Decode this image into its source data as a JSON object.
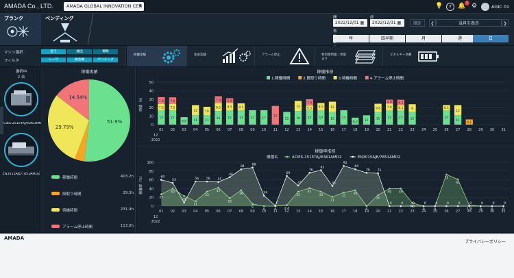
{
  "header": {
    "brand": "AMADA Co., LTD.",
    "org_select": "AMADA GLOBAL INNOVATION CEN",
    "notification_count": "1",
    "user": "AGIC 01"
  },
  "modes": [
    {
      "label": "ブランク",
      "icon": "blank-laser-icon"
    },
    {
      "label": "ベンディング",
      "icon": "bending-press-icon"
    }
  ],
  "period": {
    "start_label": "開始",
    "end_label": "終了",
    "start_value": "2022/12/01",
    "end_value": "2022/12/31",
    "confirm_label": "確定",
    "current_month_label": "当月を表示",
    "unit_label": "表示単位",
    "units": [
      "年",
      "四半期",
      "月",
      "週",
      "日"
    ],
    "active_unit": "日"
  },
  "filters": {
    "machine_label": "マシン選択",
    "machine_options": [
      "全て",
      "抽出",
      "複数"
    ],
    "filter_label": "フィルタ",
    "filter_options": [
      "レーザ",
      "複合機",
      "パンチング"
    ]
  },
  "metrics": [
    {
      "label": "稼働実績",
      "icon": "gear-icon"
    },
    {
      "label": "生産実績",
      "icon": "growth-chart-icon"
    },
    {
      "label": "アラーム停止",
      "icon": "warning-icon"
    },
    {
      "label": "材料使用量／歩留まり",
      "icon": "sheet-material-icon"
    },
    {
      "label": "エネルギー消費",
      "icon": "battery-icon"
    }
  ],
  "machines": {
    "title": "選択中",
    "count": "2 台",
    "items": [
      "ACIES-2515TAJ/6361AMD2",
      "EN3015AJE/7851AMD2"
    ]
  },
  "pie": {
    "title": "稼働実績",
    "slices": [
      {
        "name": "稼働時間",
        "pct": 51.9,
        "label": "51.9%",
        "hours": "403.2h",
        "color": "#6be08f"
      },
      {
        "name": "段取り時間",
        "pct": 3.77,
        "label": "",
        "hours": "29.3h",
        "color": "#f5a623"
      },
      {
        "name": "待機時間",
        "pct": 29.79,
        "label": "29.79%",
        "hours": "231.4h",
        "color": "#f0e65a"
      },
      {
        "name": "アラーム停止時間",
        "pct": 14.54,
        "label": "14.54%",
        "hours": "113.0h",
        "color": "#f07478"
      }
    ]
  },
  "chart_data": [
    {
      "type": "bar",
      "title": "稼働推移",
      "ylabel": "時間（h）",
      "xlabel": "12 2022",
      "ylim": [
        0,
        50
      ],
      "categories": [
        "01",
        "02",
        "03",
        "04",
        "05",
        "06",
        "07",
        "08",
        "09",
        "10",
        "11",
        "12",
        "13",
        "14",
        "15",
        "16",
        "17",
        "18",
        "19",
        "20",
        "21",
        "22",
        "23",
        "24",
        "25",
        "26",
        "27",
        "28",
        "29",
        "30",
        "31"
      ],
      "series": [
        {
          "name": "1.稼働時間",
          "color": "#6be08f",
          "values": [
            17,
            17,
            8.8,
            11,
            11,
            16,
            17,
            17,
            17,
            17,
            0,
            15,
            16,
            17,
            17,
            15,
            17,
            8.2,
            11,
            15,
            17,
            17,
            15,
            0,
            0,
            17,
            11,
            0,
            0,
            0,
            0
          ]
        },
        {
          "name": "2.段取り時間",
          "color": "#f5a623",
          "values": [
            0,
            0,
            0,
            0,
            0,
            0,
            0,
            0,
            0,
            0,
            0,
            0,
            0,
            0,
            0,
            0,
            0,
            0,
            0,
            0,
            0,
            0,
            0,
            0,
            0,
            0,
            0,
            6.1,
            0,
            0,
            0
          ]
        },
        {
          "name": "3.待機時間",
          "color": "#f0e65a",
          "values": [
            7.5,
            7.5,
            0,
            12,
            10,
            9.5,
            8.5,
            8.1,
            0,
            0,
            0,
            0,
            12,
            5.5,
            8.5,
            12,
            0,
            0,
            0,
            9.6,
            7.6,
            6.1,
            9,
            0,
            0,
            6.1,
            12,
            0,
            0,
            0,
            0
          ]
        },
        {
          "name": "4.アラーム停止時間",
          "color": "#f07478",
          "values": [
            7.8,
            7.6,
            0,
            0,
            0,
            7.9,
            5.6,
            0,
            0,
            0,
            22,
            0,
            0,
            7.4,
            0,
            0,
            0,
            0,
            0,
            0,
            4.8,
            6.2,
            0,
            0,
            0,
            0,
            0,
            0,
            0,
            0,
            0
          ]
        }
      ]
    },
    {
      "type": "line",
      "title": "稼働率推移",
      "ylabel": "稼働率（%）",
      "xlabel": "12 2022",
      "legend_title": "機種名",
      "ylim": [
        0,
        100
      ],
      "categories": [
        "01",
        "02",
        "03",
        "04",
        "05",
        "06",
        "07",
        "08",
        "09",
        "10",
        "11",
        "12",
        "13",
        "14",
        "15",
        "16",
        "17",
        "18",
        "19",
        "20",
        "21",
        "22",
        "23",
        "24",
        "25",
        "26",
        "27",
        "28",
        "29",
        "30",
        "31"
      ],
      "series": [
        {
          "name": "ACIES-2515TAJ/6361AMD2",
          "color": "#9ad48a",
          "values": [
            27,
            40,
            23,
            11,
            33,
            42,
            18,
            36,
            5,
            0,
            0,
            2.4,
            33,
            41,
            33,
            21,
            31,
            36,
            0,
            25,
            40,
            40,
            7.3,
            0,
            0,
            72,
            61,
            1.9,
            0,
            0,
            0
          ]
        },
        {
          "name": "EN3015AJE/7851AMD2",
          "color": "#e6f2e8",
          "values": [
            60,
            53,
            8,
            56,
            56,
            55,
            66,
            84,
            88,
            24,
            1,
            69,
            47,
            76,
            82,
            46,
            92,
            84,
            76,
            75,
            0,
            0,
            0,
            0,
            0,
            0,
            0,
            0,
            0,
            0,
            0
          ]
        }
      ]
    }
  ],
  "footer": {
    "logo": "AMADA",
    "privacy": "プライバシーポリシー"
  }
}
